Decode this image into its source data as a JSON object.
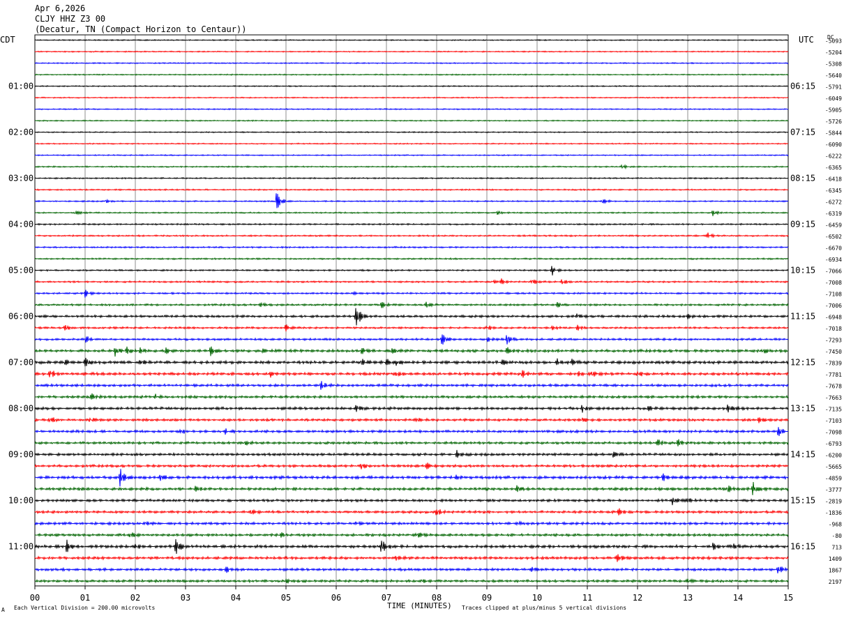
{
  "header": {
    "date": "Apr 6,2026",
    "station": "CLJY HHZ Z3 00",
    "location": "(Decatur, TN (Compact Horizon to Centaur))"
  },
  "left_timezone": "CDT",
  "right_timezone": "UTC",
  "dc_label": "DC",
  "footer": {
    "scale_mark": "A",
    "vertical_division": "Each Vertical Division =  200.00 microvolts",
    "clip_note": "Traces clipped at plus/minus 5 vertical divisions"
  },
  "chart_data": {
    "type": "line",
    "xlabel": "TIME (MINUTES)",
    "x_ticks": [
      "00",
      "01",
      "02",
      "03",
      "04",
      "05",
      "06",
      "07",
      "08",
      "09",
      "10",
      "11",
      "12",
      "13",
      "14",
      "15"
    ],
    "xlim": [
      0,
      15
    ],
    "trace_colors": [
      "#000000",
      "#ff0000",
      "#0000ff",
      "#006400"
    ],
    "grid": true,
    "left_time_labels": [
      "01:00",
      "02:00",
      "03:00",
      "04:00",
      "05:00",
      "06:00",
      "07:00",
      "08:00",
      "09:00",
      "10:00",
      "11:00"
    ],
    "right_time_labels": [
      "06:15",
      "07:15",
      "08:15",
      "09:15",
      "10:15",
      "11:15",
      "12:15",
      "13:15",
      "14:15",
      "15:15",
      "16:15"
    ],
    "dc_offsets": [
      "-5093",
      "-5204",
      "-5308",
      "-5640",
      "-5791",
      "-6049",
      "-5905",
      "-5726",
      "-5844",
      "-6090",
      "-6222",
      "-6365",
      "-6418",
      "-6345",
      "-6272",
      "-6319",
      "-6459",
      "-6502",
      "-6670",
      "-6934",
      "-7066",
      "-7008",
      "-7108",
      "-7006",
      "-6948",
      "-7018",
      "-7293",
      "-7450",
      "-7839",
      "-7781",
      "-7678",
      "-7663",
      "-7135",
      "-7103",
      "-7098",
      "-6793",
      "-6200",
      "-5665",
      "-4859",
      "-3777",
      "-2819",
      "-1836",
      "-968",
      "-80",
      "713",
      "1409",
      "1867",
      "2197"
    ],
    "series": [
      {
        "amplitude": 0.6,
        "events": []
      },
      {
        "amplitude": 0.6,
        "events": []
      },
      {
        "amplitude": 0.6,
        "events": []
      },
      {
        "amplitude": 0.6,
        "events": []
      },
      {
        "amplitude": 0.6,
        "events": []
      },
      {
        "amplitude": 0.6,
        "events": []
      },
      {
        "amplitude": 0.6,
        "events": []
      },
      {
        "amplitude": 0.6,
        "events": []
      },
      {
        "amplitude": 0.6,
        "events": []
      },
      {
        "amplitude": 0.6,
        "events": []
      },
      {
        "amplitude": 0.6,
        "events": []
      },
      {
        "amplitude": 0.7,
        "events": [
          [
            11.7,
            4
          ]
        ]
      },
      {
        "amplitude": 0.7,
        "events": []
      },
      {
        "amplitude": 0.7,
        "events": []
      },
      {
        "amplitude": 0.7,
        "events": [
          [
            1.4,
            3
          ],
          [
            4.8,
            22
          ],
          [
            11.3,
            5
          ]
        ]
      },
      {
        "amplitude": 0.7,
        "events": [
          [
            0.8,
            4
          ],
          [
            9.2,
            3
          ],
          [
            13.5,
            6
          ]
        ]
      },
      {
        "amplitude": 0.8,
        "events": []
      },
      {
        "amplitude": 0.8,
        "events": [
          [
            13.4,
            6
          ]
        ]
      },
      {
        "amplitude": 0.8,
        "events": []
      },
      {
        "amplitude": 0.8,
        "events": []
      },
      {
        "amplitude": 0.8,
        "events": [
          [
            10.3,
            8
          ]
        ]
      },
      {
        "amplitude": 0.9,
        "events": [
          [
            9.1,
            5
          ],
          [
            9.3,
            5
          ],
          [
            9.9,
            5
          ],
          [
            10.5,
            6
          ]
        ]
      },
      {
        "amplitude": 0.9,
        "events": [
          [
            1.0,
            6
          ],
          [
            6.3,
            4
          ]
        ]
      },
      {
        "amplitude": 1.0,
        "events": [
          [
            4.5,
            3
          ],
          [
            6.9,
            6
          ],
          [
            7.8,
            5
          ],
          [
            10.4,
            4
          ]
        ]
      },
      {
        "amplitude": 1.2,
        "events": [
          [
            6.4,
            22
          ],
          [
            10.8,
            5
          ],
          [
            13.0,
            4
          ]
        ]
      },
      {
        "amplitude": 1.0,
        "events": [
          [
            0.6,
            5
          ],
          [
            5.0,
            6
          ],
          [
            9.0,
            6
          ],
          [
            10.3,
            4
          ],
          [
            10.8,
            4
          ]
        ]
      },
      {
        "amplitude": 1.1,
        "events": [
          [
            1.0,
            6
          ],
          [
            8.1,
            12
          ],
          [
            9.0,
            4
          ],
          [
            9.4,
            8
          ]
        ]
      },
      {
        "amplitude": 1.4,
        "events": [
          [
            1.6,
            8
          ],
          [
            1.8,
            8
          ],
          [
            2.1,
            5
          ],
          [
            2.6,
            5
          ],
          [
            3.5,
            7
          ],
          [
            4.5,
            5
          ],
          [
            6.5,
            4
          ],
          [
            7.1,
            4
          ],
          [
            9.4,
            5
          ],
          [
            14.5,
            4
          ]
        ]
      },
      {
        "amplitude": 1.5,
        "events": [
          [
            0.6,
            5
          ],
          [
            1.0,
            7
          ],
          [
            2.1,
            7
          ],
          [
            6.5,
            6
          ],
          [
            7.0,
            5
          ],
          [
            7.2,
            5
          ],
          [
            9.3,
            4
          ],
          [
            10.4,
            5
          ],
          [
            10.7,
            5
          ]
        ]
      },
      {
        "amplitude": 1.4,
        "events": [
          [
            0.3,
            9
          ],
          [
            4.7,
            6
          ],
          [
            7.2,
            6
          ],
          [
            9.7,
            6
          ],
          [
            10.8,
            5
          ],
          [
            11.1,
            5
          ],
          [
            12.0,
            5
          ]
        ]
      },
      {
        "amplitude": 1.3,
        "events": [
          [
            5.7,
            7
          ]
        ]
      },
      {
        "amplitude": 1.3,
        "events": [
          [
            1.1,
            7
          ],
          [
            2.4,
            4
          ]
        ]
      },
      {
        "amplitude": 1.4,
        "events": [
          [
            6.4,
            6
          ],
          [
            10.9,
            6
          ],
          [
            12.2,
            4
          ],
          [
            13.8,
            7
          ]
        ]
      },
      {
        "amplitude": 1.3,
        "events": [
          [
            0.3,
            7
          ],
          [
            1.1,
            5
          ],
          [
            7.6,
            3
          ],
          [
            10.9,
            5
          ],
          [
            14.4,
            5
          ]
        ]
      },
      {
        "amplitude": 1.3,
        "events": [
          [
            2.9,
            4
          ],
          [
            3.8,
            6
          ],
          [
            14.8,
            8
          ]
        ]
      },
      {
        "amplitude": 1.3,
        "events": [
          [
            4.2,
            3
          ],
          [
            12.4,
            5
          ],
          [
            12.8,
            6
          ]
        ]
      },
      {
        "amplitude": 1.3,
        "events": [
          [
            8.4,
            5
          ],
          [
            11.5,
            6
          ]
        ]
      },
      {
        "amplitude": 1.3,
        "events": [
          [
            6.5,
            6
          ],
          [
            7.8,
            5
          ]
        ]
      },
      {
        "amplitude": 1.5,
        "events": [
          [
            1.7,
            16
          ],
          [
            2.5,
            6
          ],
          [
            8.4,
            4
          ],
          [
            12.5,
            7
          ]
        ]
      },
      {
        "amplitude": 1.4,
        "events": [
          [
            3.2,
            4
          ],
          [
            9.6,
            5
          ],
          [
            13.8,
            7
          ],
          [
            14.3,
            15
          ]
        ]
      },
      {
        "amplitude": 1.3,
        "events": [
          [
            12.7,
            7
          ],
          [
            13.0,
            5
          ]
        ]
      },
      {
        "amplitude": 1.3,
        "events": [
          [
            4.3,
            5
          ],
          [
            8.0,
            7
          ],
          [
            11.6,
            8
          ]
        ]
      },
      {
        "amplitude": 1.3,
        "events": [
          [
            2.2,
            3
          ],
          [
            6.4,
            4
          ],
          [
            9.6,
            3
          ]
        ]
      },
      {
        "amplitude": 1.3,
        "events": [
          [
            1.9,
            5
          ],
          [
            4.9,
            4
          ],
          [
            7.6,
            6
          ]
        ]
      },
      {
        "amplitude": 1.5,
        "events": [
          [
            0.6,
            18
          ],
          [
            2.0,
            5
          ],
          [
            2.8,
            14
          ],
          [
            6.9,
            14
          ],
          [
            13.5,
            5
          ],
          [
            13.9,
            4
          ]
        ]
      },
      {
        "amplitude": 1.4,
        "events": [
          [
            7.2,
            4
          ],
          [
            11.6,
            10
          ]
        ]
      },
      {
        "amplitude": 1.3,
        "events": [
          [
            3.8,
            5
          ],
          [
            9.9,
            4
          ],
          [
            14.8,
            8
          ]
        ]
      },
      {
        "amplitude": 1.3,
        "events": [
          [
            5.0,
            3
          ],
          [
            7.7,
            4
          ],
          [
            13.0,
            3
          ]
        ]
      }
    ]
  }
}
